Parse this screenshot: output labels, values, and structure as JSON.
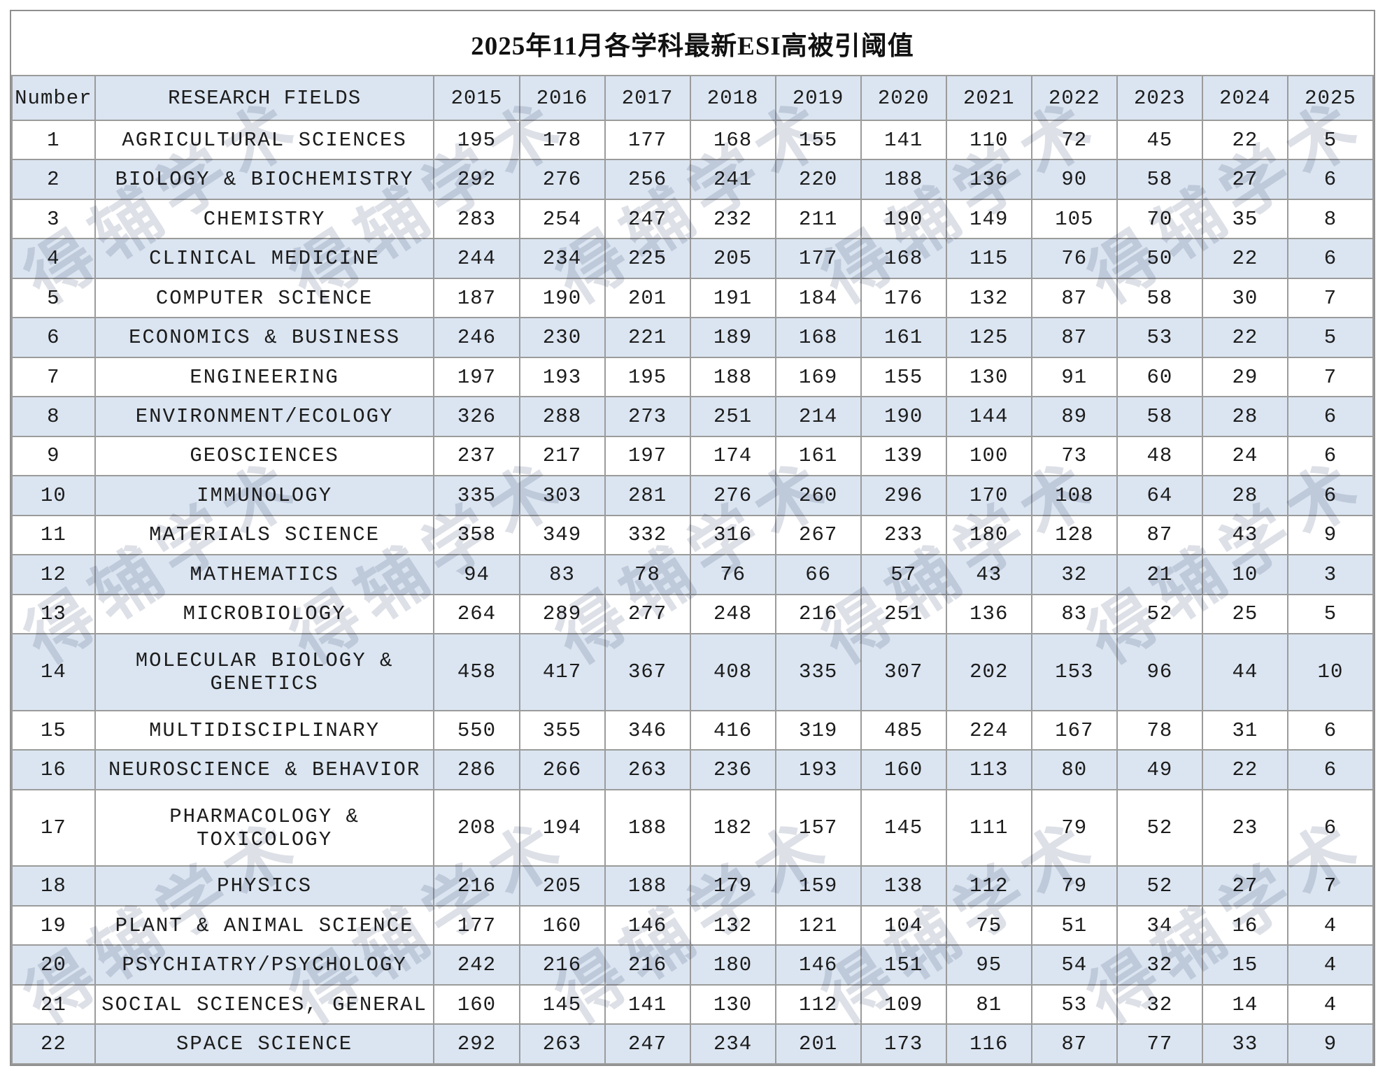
{
  "title": "2025年11月各学科最新ESI高被引阈值",
  "watermark": {
    "text": "得辅学术"
  },
  "colors": {
    "stripe_blue": "#dbe5f1",
    "grid_gray": "#9b9b9b",
    "text": "#1c1c1c",
    "watermark_gray": "#c9ced8"
  },
  "table": {
    "columns": [
      "Number",
      "RESEARCH FIELDS",
      "2015",
      "2016",
      "2017",
      "2018",
      "2019",
      "2020",
      "2021",
      "2022",
      "2023",
      "2024",
      "2025"
    ],
    "rows": [
      {
        "number": "1",
        "field": "AGRICULTURAL SCIENCES",
        "values": [
          195,
          178,
          177,
          168,
          155,
          141,
          110,
          72,
          45,
          22,
          5
        ]
      },
      {
        "number": "2",
        "field": "BIOLOGY & BIOCHEMISTRY",
        "values": [
          292,
          276,
          256,
          241,
          220,
          188,
          136,
          90,
          58,
          27,
          6
        ]
      },
      {
        "number": "3",
        "field": "CHEMISTRY",
        "values": [
          283,
          254,
          247,
          232,
          211,
          190,
          149,
          105,
          70,
          35,
          8
        ]
      },
      {
        "number": "4",
        "field": "CLINICAL MEDICINE",
        "values": [
          244,
          234,
          225,
          205,
          177,
          168,
          115,
          76,
          50,
          22,
          6
        ]
      },
      {
        "number": "5",
        "field": "COMPUTER SCIENCE",
        "values": [
          187,
          190,
          201,
          191,
          184,
          176,
          132,
          87,
          58,
          30,
          7
        ]
      },
      {
        "number": "6",
        "field": "ECONOMICS & BUSINESS",
        "values": [
          246,
          230,
          221,
          189,
          168,
          161,
          125,
          87,
          53,
          22,
          5
        ]
      },
      {
        "number": "7",
        "field": "ENGINEERING",
        "values": [
          197,
          193,
          195,
          188,
          169,
          155,
          130,
          91,
          60,
          29,
          7
        ]
      },
      {
        "number": "8",
        "field": "ENVIRONMENT/ECOLOGY",
        "values": [
          326,
          288,
          273,
          251,
          214,
          190,
          144,
          89,
          58,
          28,
          6
        ]
      },
      {
        "number": "9",
        "field": "GEOSCIENCES",
        "values": [
          237,
          217,
          197,
          174,
          161,
          139,
          100,
          73,
          48,
          24,
          6
        ]
      },
      {
        "number": "10",
        "field": "IMMUNOLOGY",
        "values": [
          335,
          303,
          281,
          276,
          260,
          296,
          170,
          108,
          64,
          28,
          6
        ]
      },
      {
        "number": "11",
        "field": "MATERIALS SCIENCE",
        "values": [
          358,
          349,
          332,
          316,
          267,
          233,
          180,
          128,
          87,
          43,
          9
        ]
      },
      {
        "number": "12",
        "field": "MATHEMATICS",
        "values": [
          94,
          83,
          78,
          76,
          66,
          57,
          43,
          32,
          21,
          10,
          3
        ]
      },
      {
        "number": "13",
        "field": "MICROBIOLOGY",
        "values": [
          264,
          289,
          277,
          248,
          216,
          251,
          136,
          83,
          52,
          25,
          5
        ]
      },
      {
        "number": "14",
        "field": "MOLECULAR BIOLOGY & GENETICS",
        "values": [
          458,
          417,
          367,
          408,
          335,
          307,
          202,
          153,
          96,
          44,
          10
        ]
      },
      {
        "number": "15",
        "field": "MULTIDISCIPLINARY",
        "values": [
          550,
          355,
          346,
          416,
          319,
          485,
          224,
          167,
          78,
          31,
          6
        ]
      },
      {
        "number": "16",
        "field": "NEUROSCIENCE & BEHAVIOR",
        "values": [
          286,
          266,
          263,
          236,
          193,
          160,
          113,
          80,
          49,
          22,
          6
        ]
      },
      {
        "number": "17",
        "field": "PHARMACOLOGY & TOXICOLOGY",
        "values": [
          208,
          194,
          188,
          182,
          157,
          145,
          111,
          79,
          52,
          23,
          6
        ]
      },
      {
        "number": "18",
        "field": "PHYSICS",
        "values": [
          216,
          205,
          188,
          179,
          159,
          138,
          112,
          79,
          52,
          27,
          7
        ]
      },
      {
        "number": "19",
        "field": "PLANT & ANIMAL SCIENCE",
        "values": [
          177,
          160,
          146,
          132,
          121,
          104,
          75,
          51,
          34,
          16,
          4
        ]
      },
      {
        "number": "20",
        "field": "PSYCHIATRY/PSYCHOLOGY",
        "values": [
          242,
          216,
          216,
          180,
          146,
          151,
          95,
          54,
          32,
          15,
          4
        ]
      },
      {
        "number": "21",
        "field": "SOCIAL SCIENCES, GENERAL",
        "values": [
          160,
          145,
          141,
          130,
          112,
          109,
          81,
          53,
          32,
          14,
          4
        ]
      },
      {
        "number": "22",
        "field": "SPACE SCIENCE",
        "values": [
          292,
          263,
          247,
          234,
          201,
          173,
          116,
          87,
          77,
          33,
          9
        ]
      }
    ]
  },
  "watermark_layout": {
    "x_centers": [
      230,
      610,
      990,
      1370,
      1750
    ],
    "y_centers": [
      280,
      795,
      1310
    ]
  }
}
